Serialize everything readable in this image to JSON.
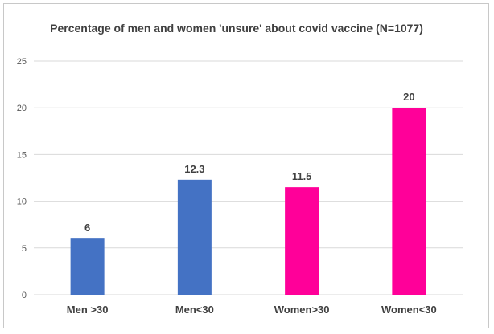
{
  "chart_data": {
    "type": "bar",
    "title": "Percentage of men and women 'unsure' about covid vaccine (N=1077)",
    "categories": [
      "Men >30",
      "Men<30",
      "Women>30",
      "Women<30"
    ],
    "values": [
      6,
      12.3,
      11.5,
      20
    ],
    "data_labels": [
      "6",
      "12.3",
      "11.5",
      "20"
    ],
    "bar_colors": [
      "#4472C4",
      "#4472C4",
      "#FF0099",
      "#FF0099"
    ],
    "ylim": [
      0,
      25
    ],
    "yticks": [
      "0",
      "5",
      "10",
      "15",
      "20",
      "25"
    ],
    "grid": true,
    "legend": "none",
    "xlabel": "",
    "ylabel": ""
  }
}
